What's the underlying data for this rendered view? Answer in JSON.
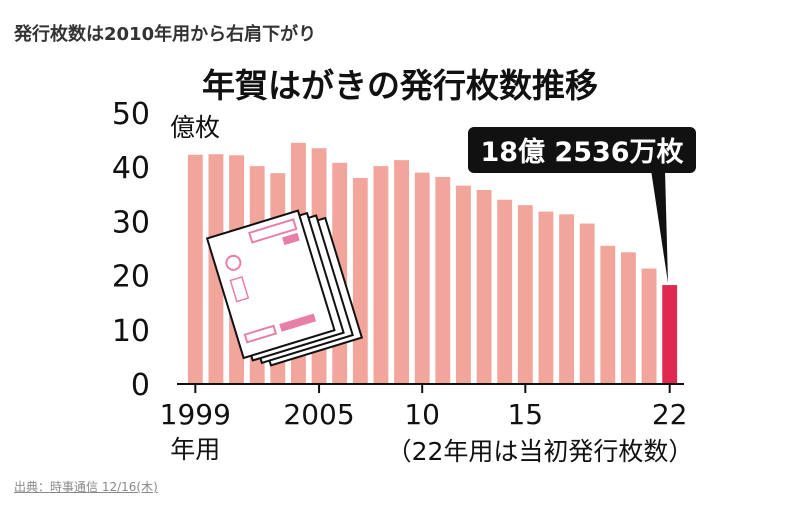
{
  "headline": "発行枚数は2010年用から右肩下がり",
  "source": "出典：時事通信 12/16(木)",
  "colors": {
    "bar": "#f2a59a",
    "highlight": "#e0294f",
    "callout_bg": "#111111",
    "card": "#e87fa8"
  },
  "chart_data": {
    "type": "bar",
    "title": "年賀はがきの発行枚数推移",
    "ylabel": "億枚",
    "ylim": [
      0,
      50
    ],
    "yticks": [
      0,
      10,
      20,
      30,
      40,
      50
    ],
    "x": [
      1999,
      2000,
      2001,
      2002,
      2003,
      2004,
      2005,
      2006,
      2007,
      2008,
      2009,
      2010,
      2011,
      2012,
      2013,
      2014,
      2015,
      2016,
      2017,
      2018,
      2019,
      2020,
      2021,
      2022
    ],
    "values": [
      42.3,
      42.4,
      42.2,
      40.2,
      38.9,
      44.5,
      43.5,
      40.8,
      38.0,
      40.2,
      41.3,
      39.0,
      38.2,
      36.6,
      35.8,
      34.0,
      33.0,
      31.8,
      31.3,
      29.6,
      25.5,
      24.3,
      21.3,
      18.2536
    ],
    "xtick_labels": [
      {
        "index": 0,
        "label": "1999",
        "sub": "年用"
      },
      {
        "index": 6,
        "label": "2005"
      },
      {
        "index": 11,
        "label": "10"
      },
      {
        "index": 16,
        "label": "15"
      },
      {
        "index": 23,
        "label": "22"
      }
    ],
    "note": "（22年用は当初発行枚数）",
    "highlight_index": 23,
    "callout": "18億 2536万枚",
    "grid": false,
    "legend": "none"
  }
}
